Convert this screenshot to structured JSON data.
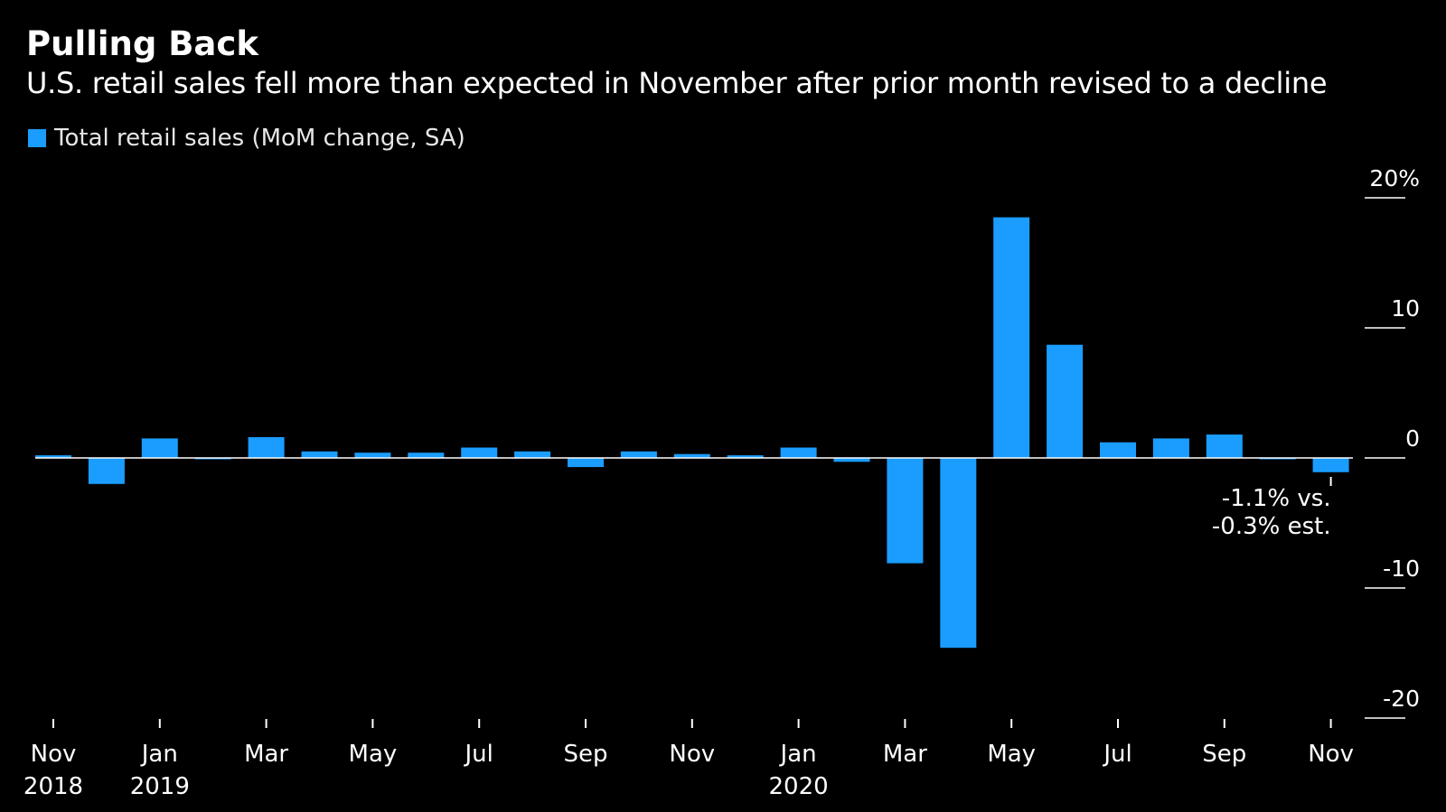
{
  "chart_data": {
    "type": "bar",
    "title": "Pulling Back",
    "subtitle": "U.S. retail sales fell more than expected in November after prior month revised to a decline",
    "legend": [
      {
        "label": "Total retail sales (MoM change, SA)",
        "color": "#1a9dff"
      }
    ],
    "categories": [
      "Nov 2018",
      "Dec 2018",
      "Jan 2019",
      "Feb 2019",
      "Mar 2019",
      "Apr 2019",
      "May 2019",
      "Jun 2019",
      "Jul 2019",
      "Aug 2019",
      "Sep 2019",
      "Oct 2019",
      "Nov 2019",
      "Dec 2019",
      "Jan 2020",
      "Feb 2020",
      "Mar 2020",
      "Apr 2020",
      "May 2020",
      "Jun 2020",
      "Jul 2020",
      "Aug 2020",
      "Sep 2020",
      "Oct 2020",
      "Nov 2020"
    ],
    "values": [
      0.2,
      -2.0,
      1.5,
      -0.1,
      1.6,
      0.5,
      0.4,
      0.4,
      0.8,
      0.5,
      -0.7,
      0.5,
      0.3,
      0.2,
      0.8,
      -0.3,
      -8.1,
      -14.6,
      18.5,
      8.7,
      1.2,
      1.5,
      1.8,
      -0.1,
      -1.1
    ],
    "ylim": [
      -20,
      20
    ],
    "yticks": [
      {
        "value": 20,
        "label": "20%"
      },
      {
        "value": 10,
        "label": "10"
      },
      {
        "value": 0,
        "label": "0"
      },
      {
        "value": -10,
        "label": "-10"
      },
      {
        "value": -20,
        "label": "-20"
      }
    ],
    "xticks": [
      {
        "index": 0,
        "month": "Nov",
        "year": "2018"
      },
      {
        "index": 2,
        "month": "Jan",
        "year": "2019"
      },
      {
        "index": 4,
        "month": "Mar",
        "year": ""
      },
      {
        "index": 6,
        "month": "May",
        "year": ""
      },
      {
        "index": 8,
        "month": "Jul",
        "year": ""
      },
      {
        "index": 10,
        "month": "Sep",
        "year": ""
      },
      {
        "index": 12,
        "month": "Nov",
        "year": ""
      },
      {
        "index": 14,
        "month": "Jan",
        "year": "2020"
      },
      {
        "index": 16,
        "month": "Mar",
        "year": ""
      },
      {
        "index": 18,
        "month": "May",
        "year": ""
      },
      {
        "index": 20,
        "month": "Jul",
        "year": ""
      },
      {
        "index": 22,
        "month": "Sep",
        "year": ""
      },
      {
        "index": 24,
        "month": "Nov",
        "year": ""
      }
    ],
    "annotation": {
      "index": 24,
      "lines": [
        "-1.1% vs.",
        "-0.3% est."
      ]
    },
    "colors": {
      "bar": "#1a9dff",
      "background": "#000000",
      "text": "#ffffff",
      "axis": "#ffffff"
    }
  }
}
